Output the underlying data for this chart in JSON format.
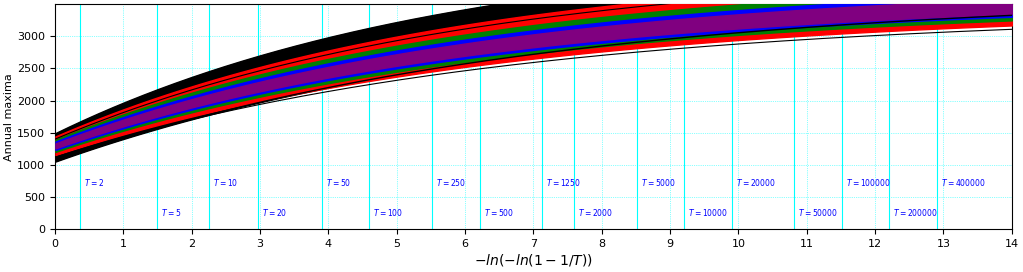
{
  "xlim": [
    0,
    14
  ],
  "ylim": [
    0,
    3500
  ],
  "xlabel": "$-ln(-ln(1 - 1/T))$",
  "ylabel": "Annual maxima",
  "xticks": [
    0,
    1,
    2,
    3,
    4,
    5,
    6,
    7,
    8,
    9,
    10,
    11,
    12,
    13,
    14
  ],
  "yticks": [
    0,
    500,
    1000,
    1500,
    2000,
    2500,
    3000
  ],
  "background_color": "#ffffff",
  "T_lines": [
    2,
    5,
    10,
    20,
    50,
    100,
    250,
    500,
    1250,
    2000,
    5000,
    10000,
    20000,
    50000,
    100000,
    200000,
    400000
  ],
  "cyan_color": "#00ffff",
  "label_color": "#0000ff",
  "figsize": [
    10.23,
    2.72
  ],
  "dpi": 100,
  "T_upper_labels": [
    2,
    10,
    50,
    250,
    1250,
    5000,
    20000,
    100000,
    400000
  ],
  "T_lower_labels": [
    5,
    20,
    100,
    500,
    2000,
    10000,
    50000,
    200000
  ]
}
